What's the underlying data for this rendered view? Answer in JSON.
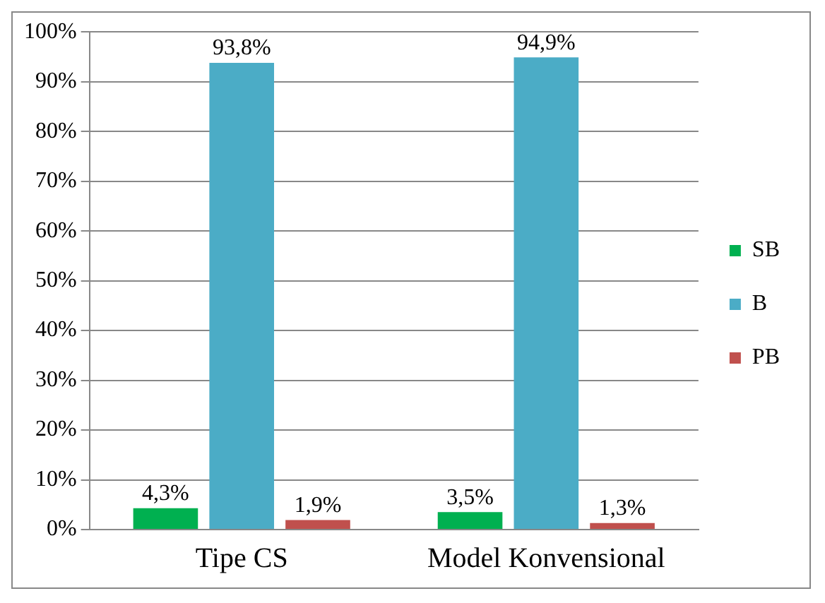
{
  "chart_data": {
    "type": "bar",
    "categories": [
      "Tipe CS",
      "Model Konvensional"
    ],
    "series": [
      {
        "name": "SB",
        "color": "#00b050",
        "values": [
          4.3,
          3.5
        ],
        "value_labels": [
          "4,3%",
          "3,5%"
        ]
      },
      {
        "name": "B",
        "color": "#4bacc6",
        "values": [
          93.8,
          94.9
        ],
        "value_labels": [
          "93,8%",
          "94,9%"
        ]
      },
      {
        "name": "PB",
        "color": "#c0504d",
        "values": [
          1.9,
          1.3
        ],
        "value_labels": [
          "1,9%",
          "1,3%"
        ]
      }
    ],
    "ylim": [
      0,
      100
    ],
    "yticks": [
      {
        "value": 0,
        "label": "0%"
      },
      {
        "value": 10,
        "label": "10%"
      },
      {
        "value": 20,
        "label": "20%"
      },
      {
        "value": 30,
        "label": "30%"
      },
      {
        "value": 40,
        "label": "40%"
      },
      {
        "value": 50,
        "label": "50%"
      },
      {
        "value": 60,
        "label": "60%"
      },
      {
        "value": 70,
        "label": "70%"
      },
      {
        "value": 80,
        "label": "80%"
      },
      {
        "value": 90,
        "label": "90%"
      },
      {
        "value": 100,
        "label": "100%"
      }
    ],
    "grid": "y",
    "legend": "right"
  }
}
